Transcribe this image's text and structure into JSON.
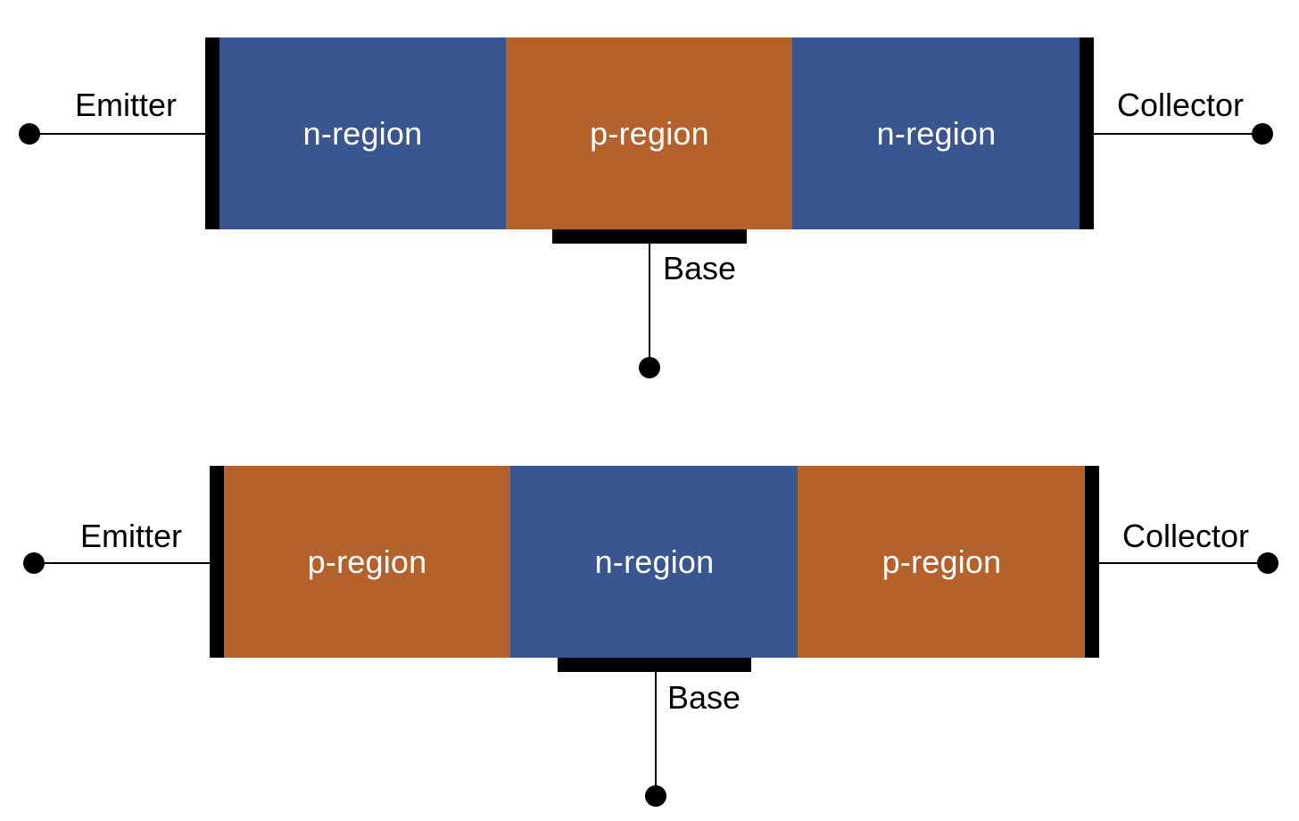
{
  "colors": {
    "n_region": "#395690",
    "p_region": "#B5612B",
    "contact": "#000000"
  },
  "diagrams": [
    {
      "emitter_label": "Emitter",
      "collector_label": "Collector",
      "base_label": "Base",
      "regions": [
        {
          "label": "n-region",
          "type": "n"
        },
        {
          "label": "p-region",
          "type": "p"
        },
        {
          "label": "n-region",
          "type": "n"
        }
      ]
    },
    {
      "emitter_label": "Emitter",
      "collector_label": "Collector",
      "base_label": "Base",
      "regions": [
        {
          "label": "p-region",
          "type": "p"
        },
        {
          "label": "n-region",
          "type": "n"
        },
        {
          "label": "p-region",
          "type": "p"
        }
      ]
    }
  ]
}
